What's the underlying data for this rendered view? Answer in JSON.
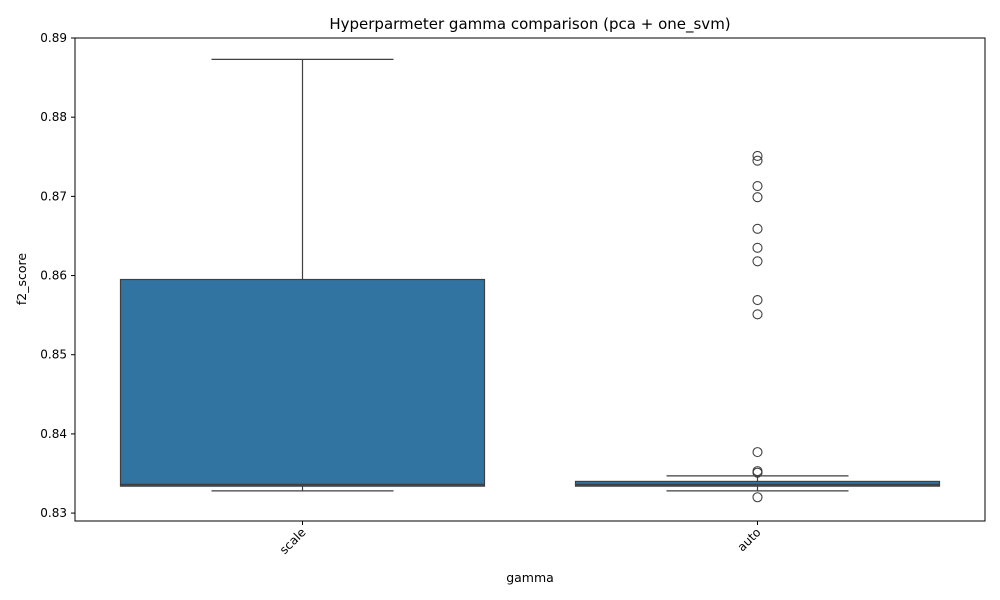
{
  "chart_data": {
    "type": "box",
    "title": "Hyperparmeter gamma comparison (pca + one_svm)",
    "xlabel": "gamma",
    "ylabel": "f2_score",
    "categories": [
      "scale",
      "auto"
    ],
    "ylim": [
      0.829,
      0.89
    ],
    "yticks": [
      "0.83",
      "0.84",
      "0.85",
      "0.86",
      "0.87",
      "0.88",
      "0.89"
    ],
    "xtick_rotation_deg": 45,
    "grid": false,
    "box_color": "#3274a1",
    "edge_color": "#3f3f3f",
    "boxes": [
      {
        "category": "scale",
        "whisker_low": 0.8328,
        "q1": 0.8334,
        "median": 0.8336,
        "q3": 0.8595,
        "whisker_high": 0.8873,
        "outliers": []
      },
      {
        "category": "auto",
        "whisker_low": 0.8328,
        "q1": 0.8334,
        "median": 0.8336,
        "q3": 0.834,
        "whisker_high": 0.8347,
        "outliers": [
          0.8751,
          0.8745,
          0.8713,
          0.8699,
          0.8659,
          0.8635,
          0.8618,
          0.8569,
          0.8551,
          0.8377,
          0.8353,
          0.8351,
          0.832
        ]
      }
    ]
  }
}
